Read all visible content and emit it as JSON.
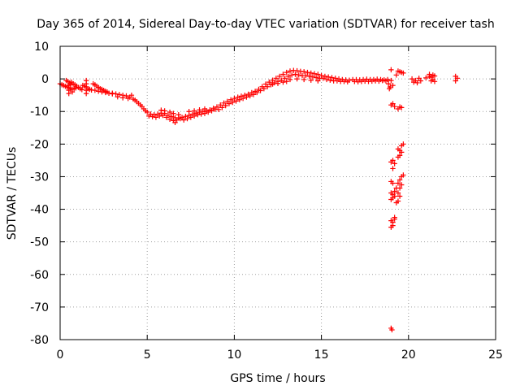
{
  "chart_data": {
    "type": "scatter",
    "title": "Day 365 of 2014, Sidereal Day-to-day VTEC variation (SDTVAR) for receiver tash",
    "xlabel": "GPS time / hours",
    "ylabel": "SDTVAR / TECUs",
    "xlim": [
      0,
      25
    ],
    "ylim": [
      -80,
      10
    ],
    "xticks": [
      0,
      5,
      10,
      15,
      20,
      25
    ],
    "yticks": [
      10,
      0,
      -10,
      -20,
      -30,
      -40,
      -50,
      -60,
      -70,
      -80
    ],
    "xtick_labels": [
      "0",
      "5",
      "10",
      "15",
      "20",
      "25"
    ],
    "ytick_labels": [
      "10",
      "0",
      "-10",
      "-20",
      "-30",
      "-40",
      "-50",
      "-60",
      "-70",
      "-80"
    ],
    "grid": true,
    "marker": "+",
    "color": "#ff0000",
    "series": [
      {
        "name": "SDTVAR",
        "points": [
          [
            0.0,
            -1.5
          ],
          [
            0.1,
            -1.8
          ],
          [
            0.2,
            -2.0
          ],
          [
            0.3,
            -2.3
          ],
          [
            0.4,
            -2.5
          ],
          [
            0.5,
            -2.7
          ],
          [
            0.6,
            -3.0
          ],
          [
            0.7,
            -3.2
          ],
          [
            0.8,
            -3.0
          ],
          [
            0.9,
            -2.8
          ],
          [
            0.35,
            -0.5
          ],
          [
            0.45,
            -0.8
          ],
          [
            0.55,
            -1.2
          ],
          [
            0.65,
            -1.0
          ],
          [
            0.75,
            -1.5
          ],
          [
            0.85,
            -1.8
          ],
          [
            0.95,
            -2.2
          ],
          [
            1.05,
            -2.6
          ],
          [
            1.15,
            -3.0
          ],
          [
            1.25,
            -3.3
          ],
          [
            0.5,
            -2.0
          ],
          [
            0.5,
            -3.5
          ],
          [
            0.5,
            -4.5
          ],
          [
            0.6,
            -1.8
          ],
          [
            0.7,
            -4.0
          ],
          [
            1.3,
            -2.0
          ],
          [
            1.4,
            -2.2
          ],
          [
            1.5,
            -0.5
          ],
          [
            1.5,
            -1.5
          ],
          [
            1.5,
            -2.5
          ],
          [
            1.5,
            -3.5
          ],
          [
            1.5,
            -4.5
          ],
          [
            1.6,
            -3.0
          ],
          [
            1.7,
            -3.2
          ],
          [
            1.8,
            -3.4
          ],
          [
            1.9,
            -1.5
          ],
          [
            2.0,
            -1.8
          ],
          [
            2.1,
            -2.2
          ],
          [
            2.2,
            -2.6
          ],
          [
            2.3,
            -3.0
          ],
          [
            2.4,
            -3.2
          ],
          [
            2.5,
            -3.5
          ],
          [
            2.6,
            -3.8
          ],
          [
            2.7,
            -4.0
          ],
          [
            2.0,
            -3.5
          ],
          [
            2.2,
            -3.8
          ],
          [
            2.4,
            -4.0
          ],
          [
            2.6,
            -4.2
          ],
          [
            2.8,
            -4.4
          ],
          [
            3.0,
            -4.6
          ],
          [
            3.0,
            -4.4
          ],
          [
            3.2,
            -4.6
          ],
          [
            3.4,
            -4.8
          ],
          [
            3.6,
            -5.0
          ],
          [
            3.8,
            -5.2
          ],
          [
            4.0,
            -5.6
          ],
          [
            4.2,
            -6.2
          ],
          [
            4.4,
            -7.0
          ],
          [
            4.6,
            -8.0
          ],
          [
            4.8,
            -9.2
          ],
          [
            3.3,
            -5.5
          ],
          [
            3.6,
            -5.8
          ],
          [
            3.9,
            -6.0
          ],
          [
            4.1,
            -5.0
          ],
          [
            4.3,
            -6.5
          ],
          [
            4.5,
            -7.5
          ],
          [
            4.7,
            -8.5
          ],
          [
            4.9,
            -9.8
          ],
          [
            5.0,
            -10.2
          ],
          [
            5.2,
            -10.8
          ],
          [
            5.4,
            -11.0
          ],
          [
            5.6,
            -10.8
          ],
          [
            5.8,
            -10.5
          ],
          [
            6.0,
            -10.6
          ],
          [
            6.2,
            -11.2
          ],
          [
            6.4,
            -11.6
          ],
          [
            6.6,
            -11.9
          ],
          [
            6.8,
            -12.0
          ],
          [
            5.1,
            -11.4
          ],
          [
            5.3,
            -11.6
          ],
          [
            5.5,
            -11.8
          ],
          [
            5.7,
            -11.4
          ],
          [
            5.9,
            -11.2
          ],
          [
            6.1,
            -11.8
          ],
          [
            6.3,
            -12.4
          ],
          [
            6.5,
            -12.8
          ],
          [
            6.7,
            -12.6
          ],
          [
            6.9,
            -12.2
          ],
          [
            5.8,
            -9.6
          ],
          [
            6.0,
            -9.8
          ],
          [
            6.3,
            -10.2
          ],
          [
            6.5,
            -10.6
          ],
          [
            6.6,
            -13.4
          ],
          [
            6.8,
            -11.0
          ],
          [
            7.0,
            -11.8
          ],
          [
            7.2,
            -11.5
          ],
          [
            7.4,
            -11.2
          ],
          [
            7.6,
            -10.8
          ],
          [
            7.8,
            -10.5
          ],
          [
            8.0,
            -10.2
          ],
          [
            8.2,
            -10.0
          ],
          [
            8.4,
            -9.8
          ],
          [
            8.6,
            -9.5
          ],
          [
            8.8,
            -9.0
          ],
          [
            7.1,
            -12.6
          ],
          [
            7.3,
            -12.2
          ],
          [
            7.5,
            -11.8
          ],
          [
            7.7,
            -11.4
          ],
          [
            7.9,
            -11.0
          ],
          [
            8.1,
            -10.8
          ],
          [
            8.3,
            -10.6
          ],
          [
            8.5,
            -10.2
          ],
          [
            8.7,
            -9.8
          ],
          [
            8.9,
            -9.4
          ],
          [
            7.4,
            -10.0
          ],
          [
            7.7,
            -9.8
          ],
          [
            8.0,
            -9.5
          ],
          [
            8.3,
            -9.2
          ],
          [
            9.0,
            -8.6
          ],
          [
            9.2,
            -8.0
          ],
          [
            9.4,
            -7.4
          ],
          [
            9.6,
            -6.9
          ],
          [
            9.8,
            -6.4
          ],
          [
            10.0,
            -6.0
          ],
          [
            10.2,
            -5.6
          ],
          [
            10.4,
            -5.3
          ],
          [
            10.6,
            -5.0
          ],
          [
            10.8,
            -4.7
          ],
          [
            9.1,
            -9.4
          ],
          [
            9.3,
            -8.8
          ],
          [
            9.5,
            -8.2
          ],
          [
            9.7,
            -7.6
          ],
          [
            9.9,
            -7.2
          ],
          [
            10.1,
            -6.8
          ],
          [
            10.3,
            -6.4
          ],
          [
            10.5,
            -6.0
          ],
          [
            10.7,
            -5.6
          ],
          [
            10.9,
            -5.2
          ],
          [
            11.0,
            -4.2
          ],
          [
            11.2,
            -3.8
          ],
          [
            11.4,
            -3.2
          ],
          [
            11.6,
            -2.4
          ],
          [
            11.8,
            -1.6
          ],
          [
            12.0,
            -1.0
          ],
          [
            12.2,
            -0.4
          ],
          [
            12.4,
            0.2
          ],
          [
            12.6,
            0.8
          ],
          [
            12.8,
            1.4
          ],
          [
            11.1,
            -4.8
          ],
          [
            11.3,
            -4.2
          ],
          [
            11.5,
            -3.6
          ],
          [
            11.7,
            -3.0
          ],
          [
            11.9,
            -2.4
          ],
          [
            12.1,
            -1.8
          ],
          [
            12.3,
            -1.2
          ],
          [
            12.5,
            -0.8
          ],
          [
            12.7,
            -0.4
          ],
          [
            12.9,
            0.2
          ],
          [
            12.2,
            -1.6
          ],
          [
            12.5,
            -1.4
          ],
          [
            12.8,
            -1.0
          ],
          [
            13.0,
            -0.8
          ],
          [
            13.0,
            2.0
          ],
          [
            13.2,
            2.4
          ],
          [
            13.4,
            2.6
          ],
          [
            13.6,
            2.5
          ],
          [
            13.8,
            2.3
          ],
          [
            14.0,
            2.2
          ],
          [
            14.2,
            2.0
          ],
          [
            14.4,
            1.8
          ],
          [
            14.6,
            1.6
          ],
          [
            14.8,
            1.4
          ],
          [
            13.1,
            0.8
          ],
          [
            13.3,
            1.2
          ],
          [
            13.5,
            1.4
          ],
          [
            13.7,
            1.2
          ],
          [
            13.9,
            1.0
          ],
          [
            14.1,
            1.0
          ],
          [
            14.3,
            0.8
          ],
          [
            14.5,
            0.6
          ],
          [
            14.7,
            0.4
          ],
          [
            14.9,
            0.2
          ],
          [
            13.2,
            -0.2
          ],
          [
            13.6,
            0.0
          ],
          [
            14.0,
            -0.2
          ],
          [
            14.4,
            -0.4
          ],
          [
            14.8,
            -0.6
          ],
          [
            15.0,
            1.0
          ],
          [
            15.2,
            0.8
          ],
          [
            15.4,
            0.6
          ],
          [
            15.6,
            0.4
          ],
          [
            15.8,
            0.2
          ],
          [
            16.0,
            0.0
          ],
          [
            16.2,
            -0.2
          ],
          [
            16.4,
            -0.3
          ],
          [
            16.6,
            -0.4
          ],
          [
            15.1,
            0.2
          ],
          [
            15.3,
            -0.2
          ],
          [
            15.5,
            -0.4
          ],
          [
            15.7,
            -0.6
          ],
          [
            15.9,
            -0.6
          ],
          [
            16.1,
            -0.8
          ],
          [
            16.3,
            -0.8
          ],
          [
            16.5,
            -0.9
          ],
          [
            16.8,
            -0.2
          ],
          [
            17.0,
            -0.2
          ],
          [
            17.2,
            -0.3
          ],
          [
            17.4,
            -0.2
          ],
          [
            17.6,
            -0.1
          ],
          [
            17.8,
            -0.2
          ],
          [
            18.0,
            -0.2
          ],
          [
            18.2,
            -0.1
          ],
          [
            18.4,
            -0.2
          ],
          [
            18.6,
            -0.3
          ],
          [
            16.9,
            -0.8
          ],
          [
            17.1,
            -0.9
          ],
          [
            17.3,
            -0.8
          ],
          [
            17.5,
            -0.7
          ],
          [
            17.7,
            -0.8
          ],
          [
            17.9,
            -0.7
          ],
          [
            18.1,
            -0.6
          ],
          [
            18.3,
            -0.7
          ],
          [
            18.5,
            -0.5
          ],
          [
            18.7,
            -0.6
          ],
          [
            18.8,
            -0.2
          ],
          [
            18.85,
            -1.5
          ],
          [
            18.9,
            -3.0
          ],
          [
            18.95,
            -2.5
          ],
          [
            19.0,
            2.8
          ],
          [
            19.0,
            -0.5
          ],
          [
            19.1,
            -2.0
          ],
          [
            19.3,
            1.2
          ],
          [
            19.0,
            -8.0
          ],
          [
            19.1,
            -7.6
          ],
          [
            19.2,
            -8.5
          ],
          [
            19.4,
            -9.2
          ],
          [
            19.5,
            -8.6
          ],
          [
            19.6,
            -8.8
          ],
          [
            19.4,
            2.4
          ],
          [
            19.5,
            2.2
          ],
          [
            19.6,
            2.0
          ],
          [
            19.7,
            1.8
          ],
          [
            19.0,
            -25.5
          ],
          [
            19.1,
            -25.0
          ],
          [
            19.1,
            -27.5
          ],
          [
            19.2,
            -26.0
          ],
          [
            19.0,
            -31.5
          ],
          [
            19.1,
            -32.0
          ],
          [
            19.4,
            -21.5
          ],
          [
            19.5,
            -22.0
          ],
          [
            19.5,
            -23.5
          ],
          [
            19.6,
            -20.5
          ],
          [
            19.6,
            -22.5
          ],
          [
            19.7,
            -20.0
          ],
          [
            19.4,
            -24.0
          ],
          [
            19.0,
            -35.0
          ],
          [
            19.1,
            -35.5
          ],
          [
            19.2,
            -36.0
          ],
          [
            19.2,
            -34.5
          ],
          [
            19.3,
            -33.5
          ],
          [
            19.0,
            -37.0
          ],
          [
            19.1,
            -36.5
          ],
          [
            19.4,
            -32.0
          ],
          [
            19.5,
            -31.0
          ],
          [
            19.5,
            -33.5
          ],
          [
            19.6,
            -30.0
          ],
          [
            19.6,
            -32.5
          ],
          [
            19.7,
            -29.5
          ],
          [
            19.4,
            -35.0
          ],
          [
            19.5,
            -36.0
          ],
          [
            19.3,
            -38.0
          ],
          [
            19.4,
            -37.5
          ],
          [
            19.0,
            -43.5
          ],
          [
            19.1,
            -44.0
          ],
          [
            19.2,
            -42.5
          ],
          [
            19.0,
            -45.5
          ],
          [
            19.1,
            -45.0
          ],
          [
            19.2,
            -43.0
          ],
          [
            19.0,
            -76.5
          ],
          [
            19.05,
            -77.0
          ],
          [
            20.2,
            0.0
          ],
          [
            20.3,
            -1.0
          ],
          [
            20.4,
            -0.5
          ],
          [
            20.5,
            -1.2
          ],
          [
            20.6,
            0.2
          ],
          [
            20.7,
            -0.6
          ],
          [
            21.0,
            0.3
          ],
          [
            21.2,
            0.8
          ],
          [
            21.3,
            0.5
          ],
          [
            21.4,
            -0.2
          ],
          [
            21.5,
            0.9
          ],
          [
            21.3,
            -0.6
          ],
          [
            21.2,
            1.4
          ],
          [
            21.4,
            1.2
          ],
          [
            21.5,
            -0.8
          ],
          [
            22.7,
            0.8
          ],
          [
            22.7,
            -0.6
          ],
          [
            22.8,
            0.2
          ]
        ]
      }
    ]
  }
}
